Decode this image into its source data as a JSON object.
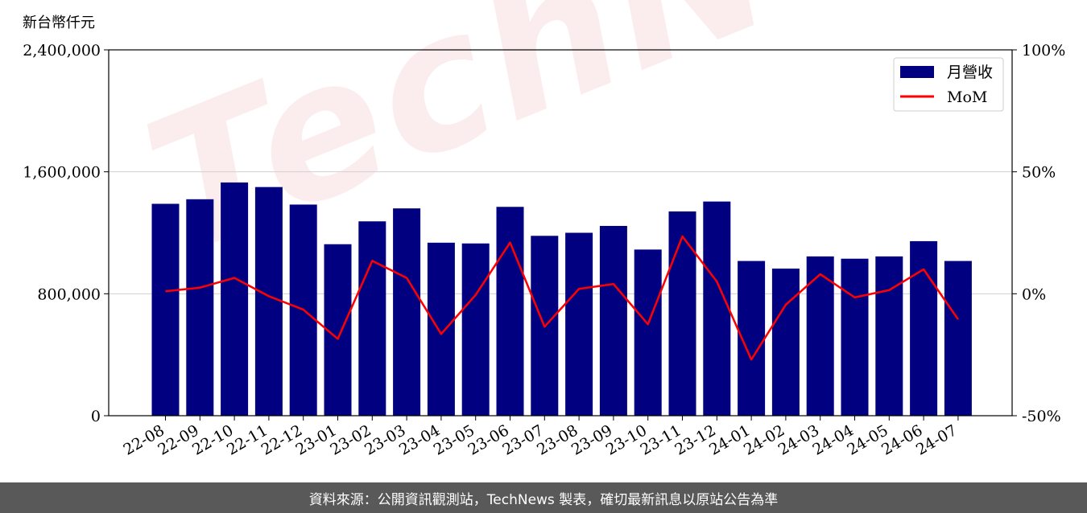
{
  "chart_data": {
    "type": "bar",
    "ylabel": "新台幣仟元",
    "categories": [
      "22-08",
      "22-09",
      "22-10",
      "22-11",
      "22-12",
      "23-01",
      "23-02",
      "23-03",
      "23-04",
      "23-05",
      "23-06",
      "23-07",
      "23-08",
      "23-09",
      "23-10",
      "23-11",
      "23-12",
      "24-01",
      "24-02",
      "24-03",
      "24-04",
      "24-05",
      "24-06",
      "24-07"
    ],
    "series": [
      {
        "name": "月營收",
        "type": "bar",
        "color": "#000080",
        "values": [
          1390000,
          1420000,
          1530000,
          1500000,
          1385000,
          1125000,
          1275000,
          1360000,
          1135000,
          1130000,
          1370000,
          1180000,
          1200000,
          1245000,
          1090000,
          1340000,
          1405000,
          1015000,
          965000,
          1045000,
          1030000,
          1045000,
          1145000,
          1015000
        ]
      },
      {
        "name": "MoM",
        "type": "line",
        "color": "#ff0000",
        "axis": "right",
        "values": [
          1,
          2.5,
          6.5,
          -1,
          -6.5,
          -18.5,
          13.5,
          6.5,
          -16.5,
          -0.5,
          21,
          -13.5,
          2,
          4,
          -12.5,
          23.5,
          5,
          -27,
          -4.5,
          8,
          -1.5,
          1.5,
          10,
          -10.5
        ]
      }
    ],
    "ylim": [
      0,
      2400000
    ],
    "yticks": [
      "0",
      "800,000",
      "1,600,000",
      "2,400,000"
    ],
    "y2lim": [
      -50,
      100
    ],
    "y2ticks": [
      "-50%",
      "0%",
      "50%",
      "100%"
    ],
    "grid": true,
    "legend": "top-right"
  },
  "watermark": "TechNews",
  "footer": "資料來源：公開資訊觀測站，TechNews 製表，確切最新訊息以原站公告為準"
}
